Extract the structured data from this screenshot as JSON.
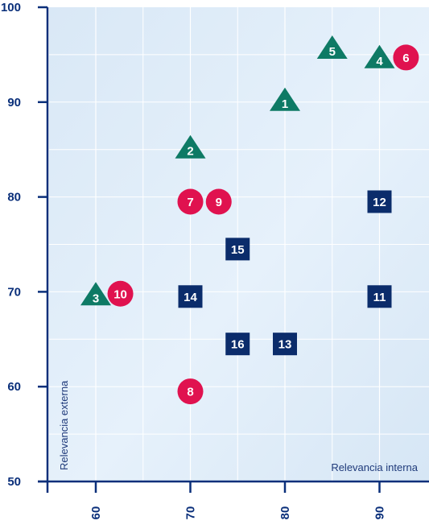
{
  "chart_data": {
    "type": "scatter",
    "title": "",
    "xlabel": "Relevancia interna",
    "ylabel": "Relevancia externa",
    "xlim": [
      55,
      92
    ],
    "ylim": [
      50,
      100
    ],
    "xticks": [
      "60",
      "70",
      "80",
      "90"
    ],
    "yticks": [
      "50",
      "60",
      "70",
      "80",
      "90",
      "100"
    ],
    "grid": true,
    "colors": {
      "triangle": "#0e7a65",
      "circle": "#e0124f",
      "square": "#0b2c6b",
      "axis": "#0a2f7a",
      "plot_bg": "#e3effa",
      "grid": "#ffffff"
    },
    "series": [
      {
        "shape": "triangle",
        "points": [
          {
            "label": "1",
            "x": 80,
            "y": 90
          },
          {
            "label": "2",
            "x": 70,
            "y": 85
          },
          {
            "label": "3",
            "x": 60,
            "y": 69.5
          },
          {
            "label": "4",
            "x": 90,
            "y": 94.5
          },
          {
            "label": "5",
            "x": 85,
            "y": 95.5
          }
        ]
      },
      {
        "shape": "circle",
        "points": [
          {
            "label": "6",
            "x": 92.8,
            "y": 94.7
          },
          {
            "label": "7",
            "x": 70,
            "y": 79.5
          },
          {
            "label": "8",
            "x": 70,
            "y": 59.5
          },
          {
            "label": "9",
            "x": 73,
            "y": 79.5
          },
          {
            "label": "10",
            "x": 62.6,
            "y": 69.8
          }
        ]
      },
      {
        "shape": "square",
        "points": [
          {
            "label": "11",
            "x": 90,
            "y": 69.5
          },
          {
            "label": "12",
            "x": 90,
            "y": 79.5
          },
          {
            "label": "13",
            "x": 80,
            "y": 64.5
          },
          {
            "label": "14",
            "x": 70,
            "y": 69.5
          },
          {
            "label": "15",
            "x": 75,
            "y": 74.5
          },
          {
            "label": "16",
            "x": 75,
            "y": 64.5
          }
        ]
      }
    ]
  }
}
